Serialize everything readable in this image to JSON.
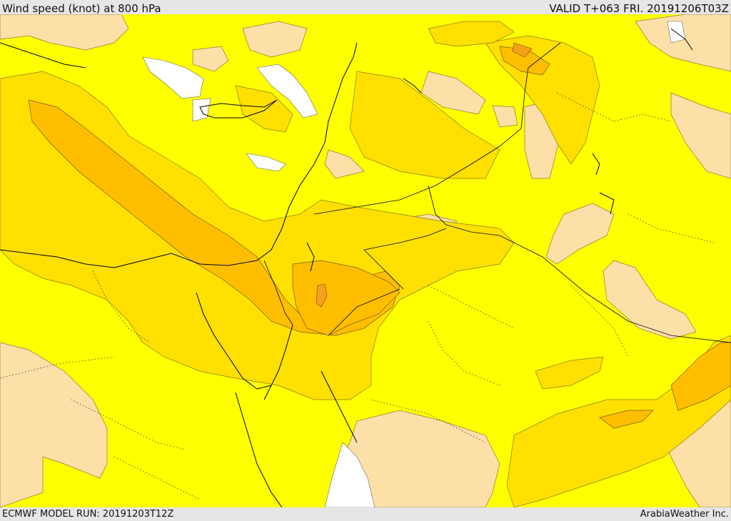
{
  "header": {
    "title": "Wind speed (knot) at 800 hPa",
    "valid": "VALID T+063 FRI. 20191206T03Z"
  },
  "footer": {
    "model_run": "ECMWF MODEL RUN: 20191203T12Z",
    "credit": "ArabiaWeather Inc."
  },
  "colors": {
    "band_low": "#ffffff",
    "band_light": "#fde0a8",
    "band_yellow": "#ffff00",
    "band_gold": "#ffe000",
    "band_amber": "#ffbf00",
    "band_orange": "#f5a21a",
    "coast": "#000000",
    "border_dotted": "#333333",
    "chrome": "#e6e6e6"
  },
  "map": {
    "field": "wind speed at 800 hPa",
    "legend_shown": false
  }
}
